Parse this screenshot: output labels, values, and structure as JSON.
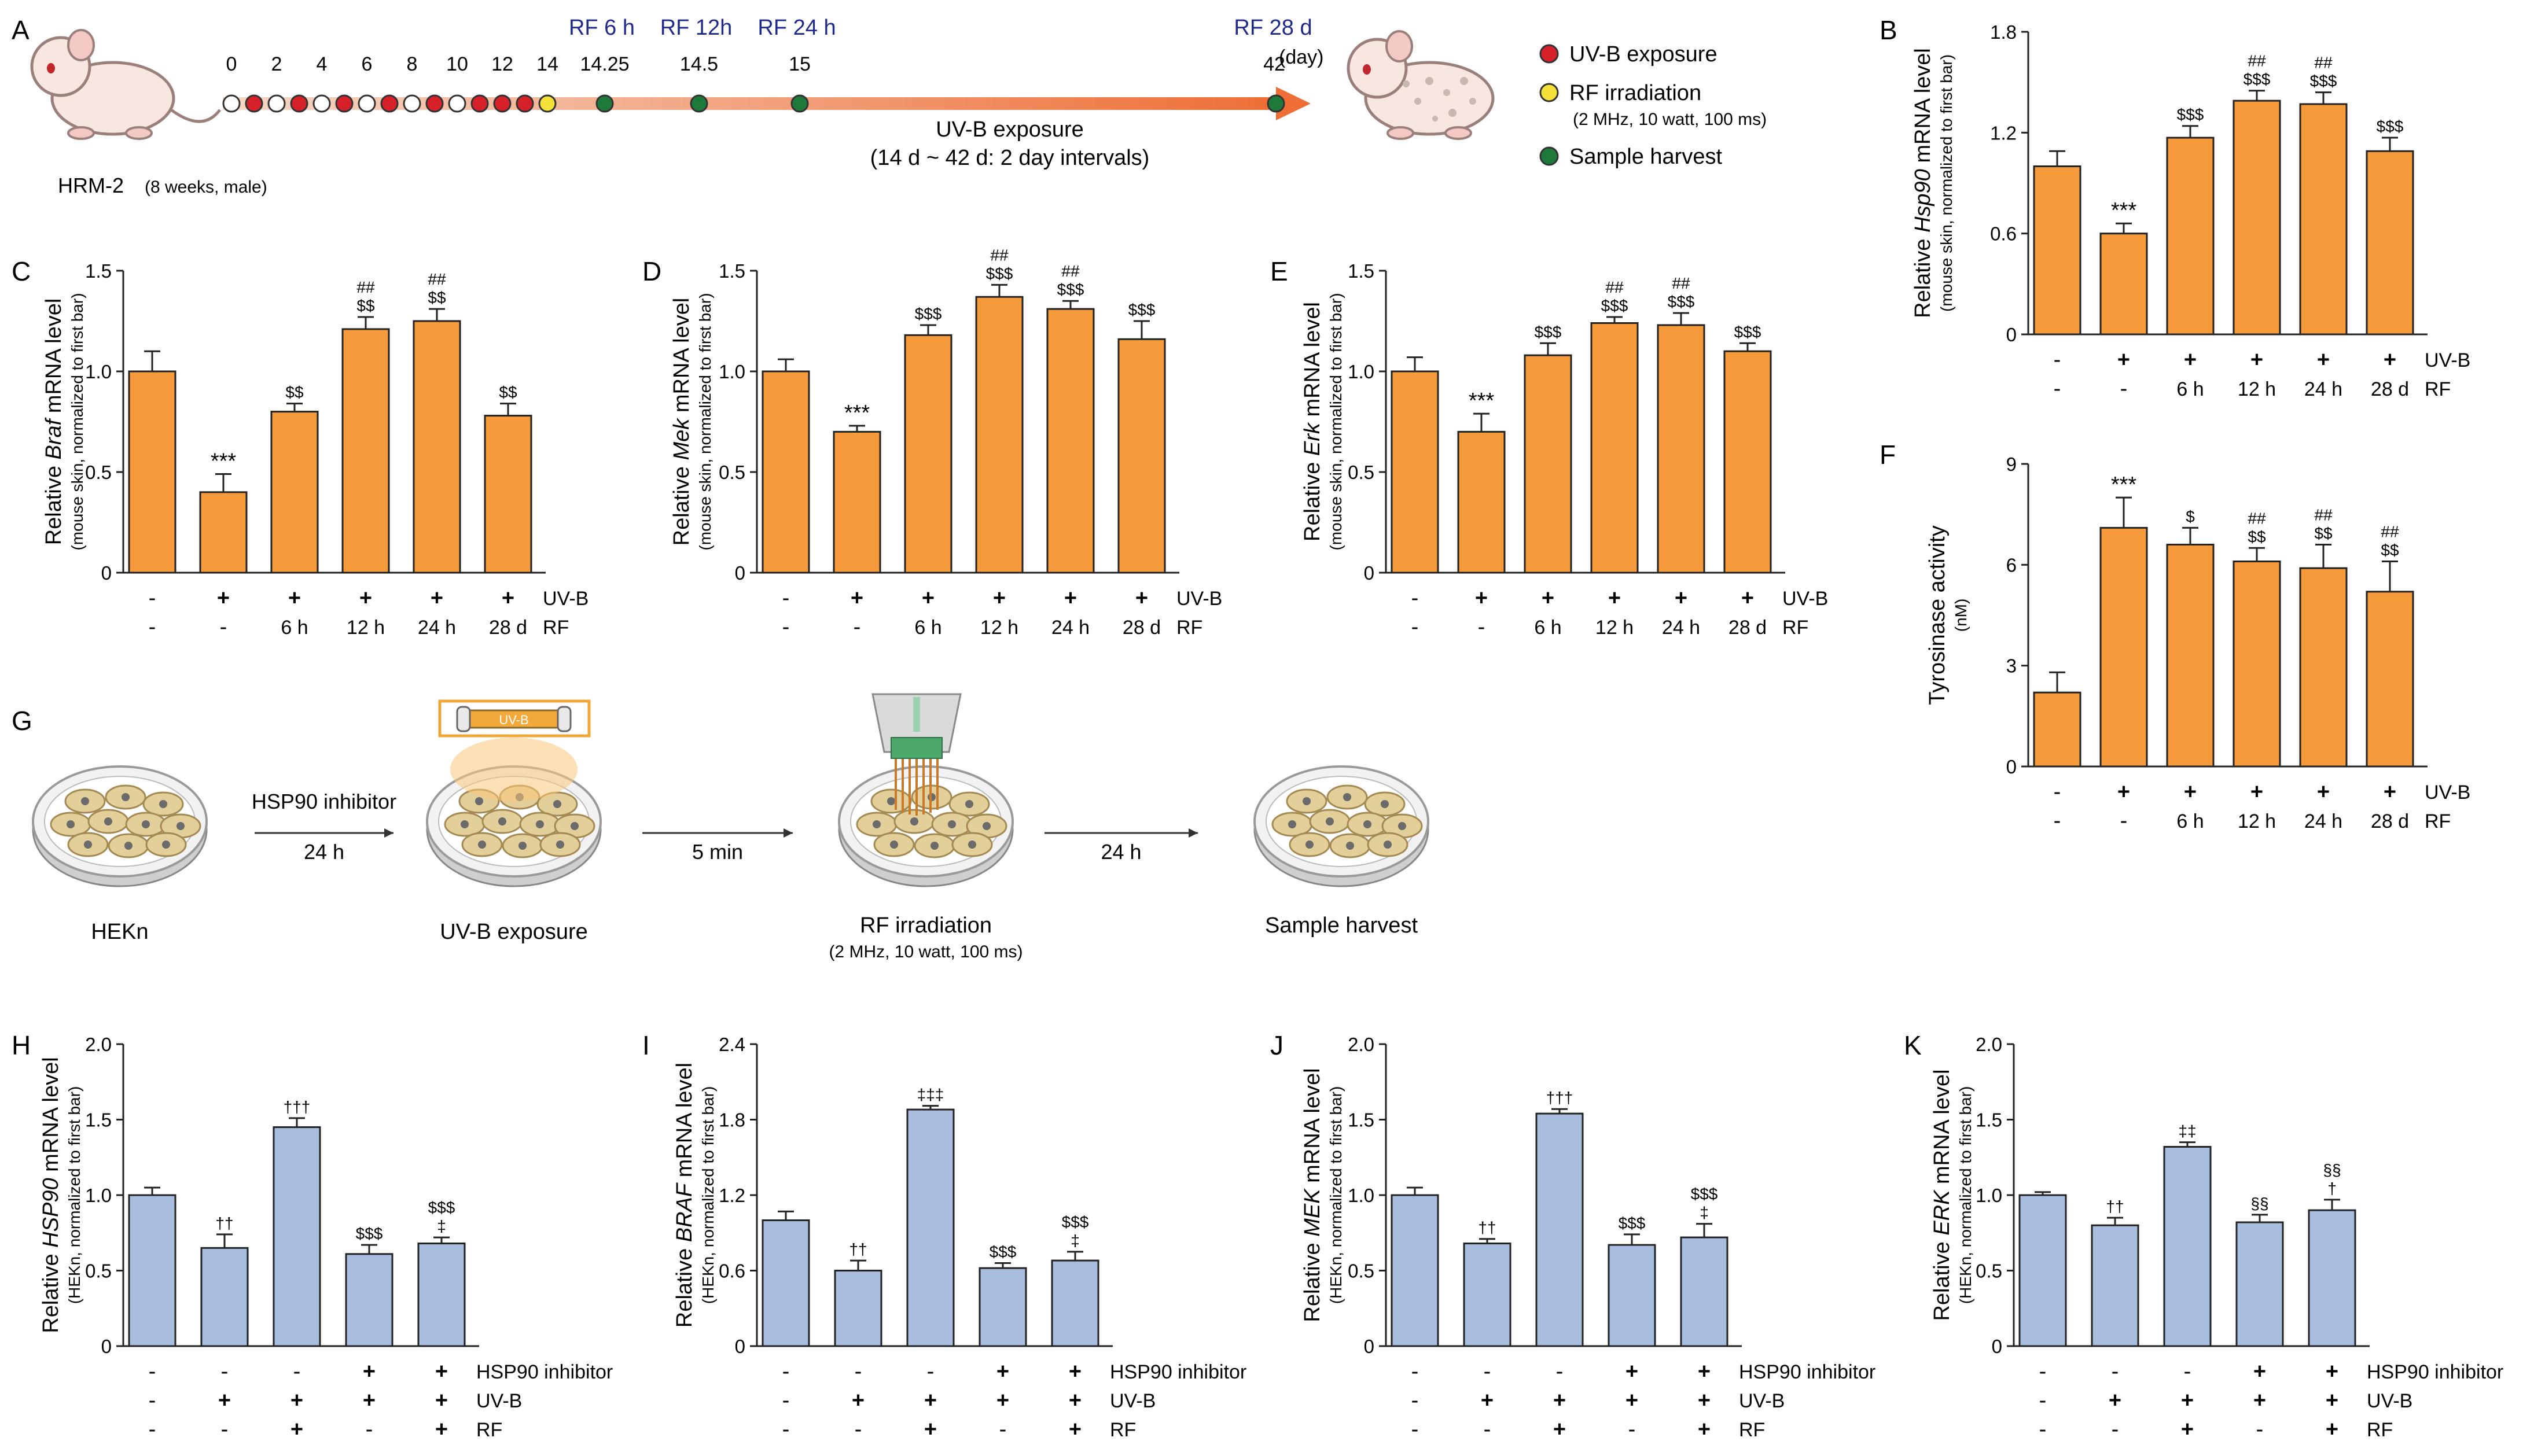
{
  "panel_labels": {
    "A": "A",
    "B": "B",
    "C": "C",
    "D": "D",
    "E": "E",
    "F": "F",
    "G": "G",
    "H": "H",
    "I": "I",
    "J": "J",
    "K": "K"
  },
  "colors": {
    "orange": "#F59B3C",
    "blue": "#A9BEDE",
    "red": "#D6202A",
    "yellow": "#F4E23A",
    "green": "#1E7A3A",
    "navy": "#1F2A8A"
  },
  "timeline": {
    "subject": "HRM-2",
    "subject_note": "(8 weeks, male)",
    "days": [
      "0",
      "2",
      "4",
      "6",
      "8",
      "10",
      "12",
      "14"
    ],
    "rf_labels": [
      "RF 6 h",
      "RF 12h",
      "RF 24 h",
      "RF 28 d"
    ],
    "harvest_days": [
      "14.25",
      "14.5",
      "15",
      "42"
    ],
    "day_unit": "(day)",
    "arrow_label_1": "UV-B exposure",
    "arrow_label_2": "(14 d ~ 42 d: 2 day intervals)",
    "legend": [
      {
        "text": "UV-B exposure",
        "note": ""
      },
      {
        "text": "RF irradiation",
        "note": "(2 MHz, 10 watt, 100 ms)"
      },
      {
        "text": "Sample harvest",
        "note": ""
      }
    ]
  },
  "schematic": {
    "steps": [
      "HEKn",
      "UV-B exposure",
      "RF irradiation",
      "Sample harvest"
    ],
    "step_note": "(2 MHz, 10 watt, 100 ms)",
    "arrows": [
      {
        "top": "HSP90 inhibitor",
        "bottom": "24 h"
      },
      {
        "top": "",
        "bottom": "5 min"
      },
      {
        "top": "",
        "bottom": "24 h"
      }
    ],
    "lamp_label": "UV-B"
  },
  "row_labels": {
    "uvb": "UV-B",
    "rf": "RF",
    "inhibitor": "HSP90 inhibitor"
  },
  "chart_data": [
    {
      "panel": "B",
      "type": "bar",
      "ylabel_pre": "Relative ",
      "ylabel_gene": "Hsp90",
      "ylabel_post": " mRNA level",
      "ylabel_sub": "(mouse skin, normalized to first bar)",
      "ylim": [
        0,
        1.8
      ],
      "ticks": [
        "0",
        "0.6",
        "1.2",
        "1.8"
      ],
      "values": [
        1.0,
        0.6,
        1.17,
        1.39,
        1.37,
        1.09
      ],
      "errors": [
        0.09,
        0.06,
        0.07,
        0.06,
        0.07,
        0.08
      ],
      "sig_top": [
        "",
        "***",
        "",
        "##",
        "##",
        ""
      ],
      "sig_bottom": [
        "",
        "",
        "$$$",
        "$$$",
        "$$$",
        "$$$"
      ],
      "uvb": [
        "-",
        "+",
        "+",
        "+",
        "+",
        "+"
      ],
      "rf": [
        "-",
        "-",
        "6 h",
        "12 h",
        "24 h",
        "28 d"
      ]
    },
    {
      "panel": "C",
      "type": "bar",
      "ylabel_pre": "Relative ",
      "ylabel_gene": "Braf",
      "ylabel_post": " mRNA level",
      "ylabel_sub": "(mouse skin, normalized to first bar)",
      "ylim": [
        0,
        1.5
      ],
      "ticks": [
        "0",
        "0.5",
        "1.0",
        "1.5"
      ],
      "values": [
        1.0,
        0.4,
        0.8,
        1.21,
        1.25,
        0.78
      ],
      "errors": [
        0.1,
        0.09,
        0.04,
        0.06,
        0.06,
        0.06
      ],
      "sig_top": [
        "",
        "***",
        "",
        "##",
        "##",
        ""
      ],
      "sig_bottom": [
        "",
        "",
        "$$",
        "$$",
        "$$",
        "$$"
      ],
      "uvb": [
        "-",
        "+",
        "+",
        "+",
        "+",
        "+"
      ],
      "rf": [
        "-",
        "-",
        "6 h",
        "12 h",
        "24 h",
        "28 d"
      ]
    },
    {
      "panel": "D",
      "type": "bar",
      "ylabel_pre": "Relative ",
      "ylabel_gene": "Mek",
      "ylabel_post": " mRNA level",
      "ylabel_sub": "(mouse skin, normalized to first bar)",
      "ylim": [
        0,
        1.5
      ],
      "ticks": [
        "0",
        "0.5",
        "1.0",
        "1.5"
      ],
      "values": [
        1.0,
        0.7,
        1.18,
        1.37,
        1.31,
        1.16
      ],
      "errors": [
        0.06,
        0.03,
        0.05,
        0.06,
        0.04,
        0.09
      ],
      "sig_top": [
        "",
        "***",
        "",
        "##",
        "##",
        ""
      ],
      "sig_bottom": [
        "",
        "",
        "$$$",
        "$$$",
        "$$$",
        "$$$"
      ],
      "uvb": [
        "-",
        "+",
        "+",
        "+",
        "+",
        "+"
      ],
      "rf": [
        "-",
        "-",
        "6 h",
        "12 h",
        "24 h",
        "28 d"
      ]
    },
    {
      "panel": "E",
      "type": "bar",
      "ylabel_pre": "Relative ",
      "ylabel_gene": "Erk",
      "ylabel_post": " mRNA level",
      "ylabel_sub": "(mouse skin, normalized to first bar)",
      "ylim": [
        0,
        1.5
      ],
      "ticks": [
        "0",
        "0.5",
        "1.0",
        "1.5"
      ],
      "values": [
        1.0,
        0.7,
        1.08,
        1.24,
        1.23,
        1.1
      ],
      "errors": [
        0.07,
        0.09,
        0.06,
        0.03,
        0.06,
        0.04
      ],
      "sig_top": [
        "",
        "***",
        "",
        "##",
        "##",
        ""
      ],
      "sig_bottom": [
        "",
        "",
        "$$$",
        "$$$",
        "$$$",
        "$$$"
      ],
      "uvb": [
        "-",
        "+",
        "+",
        "+",
        "+",
        "+"
      ],
      "rf": [
        "-",
        "-",
        "6 h",
        "12 h",
        "24 h",
        "28 d"
      ]
    },
    {
      "panel": "F",
      "type": "bar",
      "ylabel_pre": "",
      "ylabel_gene": "",
      "ylabel_post": "Tyrosinase activity",
      "ylabel_sub": "(nM)",
      "ylim": [
        0,
        9
      ],
      "ticks": [
        "0",
        "3",
        "6",
        "9"
      ],
      "values": [
        2.2,
        7.1,
        6.6,
        6.1,
        5.9,
        5.2
      ],
      "errors": [
        0.6,
        0.9,
        0.5,
        0.4,
        0.7,
        0.9
      ],
      "sig_top": [
        "",
        "***",
        "",
        "##",
        "##",
        "##"
      ],
      "sig_bottom": [
        "",
        "",
        "$",
        "$$",
        "$$",
        "$$"
      ],
      "uvb": [
        "-",
        "+",
        "+",
        "+",
        "+",
        "+"
      ],
      "rf": [
        "-",
        "-",
        "6 h",
        "12 h",
        "24 h",
        "28 d"
      ]
    },
    {
      "panel": "H",
      "type": "bar",
      "ylabel_pre": "Relative ",
      "ylabel_gene": "HSP90",
      "ylabel_post": " mRNA level",
      "ylabel_sub": "(HEKn, normalized to first bar)",
      "ylim": [
        0,
        2.0
      ],
      "ticks": [
        "0",
        "0.5",
        "1.0",
        "1.5",
        "2.0"
      ],
      "values": [
        1.0,
        0.65,
        1.45,
        0.61,
        0.68
      ],
      "errors": [
        0.05,
        0.09,
        0.06,
        0.06,
        0.04
      ],
      "sig_top": [
        "",
        "",
        "",
        "",
        "$$$"
      ],
      "sig_bottom": [
        "",
        "††",
        "†††",
        "$$$",
        "‡"
      ],
      "inhibitor": [
        "-",
        "-",
        "-",
        "+",
        "+"
      ],
      "uvb": [
        "-",
        "+",
        "+",
        "+",
        "+"
      ],
      "rf": [
        "-",
        "-",
        "+",
        "-",
        "+"
      ]
    },
    {
      "panel": "I",
      "type": "bar",
      "ylabel_pre": "Relative ",
      "ylabel_gene": "BRAF",
      "ylabel_post": " mRNA level",
      "ylabel_sub": "(HEKn, normalized to first bar)",
      "ylim": [
        0,
        2.4
      ],
      "ticks": [
        "0",
        "0.6",
        "1.2",
        "1.8",
        "2.4"
      ],
      "values": [
        1.0,
        0.6,
        1.88,
        0.62,
        0.68
      ],
      "errors": [
        0.07,
        0.08,
        0.03,
        0.04,
        0.07
      ],
      "sig_top": [
        "",
        "",
        "",
        "",
        "$$$"
      ],
      "sig_bottom": [
        "",
        "††",
        "‡‡‡",
        "$$$",
        "‡"
      ],
      "inhibitor": [
        "-",
        "-",
        "-",
        "+",
        "+"
      ],
      "uvb": [
        "-",
        "+",
        "+",
        "+",
        "+"
      ],
      "rf": [
        "-",
        "-",
        "+",
        "-",
        "+"
      ]
    },
    {
      "panel": "J",
      "type": "bar",
      "ylabel_pre": "Relative ",
      "ylabel_gene": "MEK",
      "ylabel_post": " mRNA level",
      "ylabel_sub": "(HEKn, normalized to first bar)",
      "ylim": [
        0,
        2.0
      ],
      "ticks": [
        "0",
        "0.5",
        "1.0",
        "1.5",
        "2.0"
      ],
      "values": [
        1.0,
        0.68,
        1.54,
        0.67,
        0.72
      ],
      "errors": [
        0.05,
        0.03,
        0.03,
        0.07,
        0.09
      ],
      "sig_top": [
        "",
        "",
        "",
        "",
        "$$$"
      ],
      "sig_bottom": [
        "",
        "††",
        "†††",
        "$$$",
        "‡"
      ],
      "inhibitor": [
        "-",
        "-",
        "-",
        "+",
        "+"
      ],
      "uvb": [
        "-",
        "+",
        "+",
        "+",
        "+"
      ],
      "rf": [
        "-",
        "-",
        "+",
        "-",
        "+"
      ]
    },
    {
      "panel": "K",
      "type": "bar",
      "ylabel_pre": "Relative ",
      "ylabel_gene": "ERK",
      "ylabel_post": " mRNA level",
      "ylabel_sub": "(HEKn, normalized to first bar)",
      "ylim": [
        0,
        2.0
      ],
      "ticks": [
        "0",
        "0.5",
        "1.0",
        "1.5",
        "2.0"
      ],
      "values": [
        1.0,
        0.8,
        1.32,
        0.82,
        0.9
      ],
      "errors": [
        0.02,
        0.05,
        0.03,
        0.05,
        0.07
      ],
      "sig_top": [
        "",
        "",
        "",
        "",
        "§§"
      ],
      "sig_bottom": [
        "",
        "††",
        "‡‡",
        "§§",
        "†"
      ],
      "inhibitor": [
        "-",
        "-",
        "-",
        "+",
        "+"
      ],
      "uvb": [
        "-",
        "+",
        "+",
        "+",
        "+"
      ],
      "rf": [
        "-",
        "-",
        "+",
        "-",
        "+"
      ]
    }
  ]
}
